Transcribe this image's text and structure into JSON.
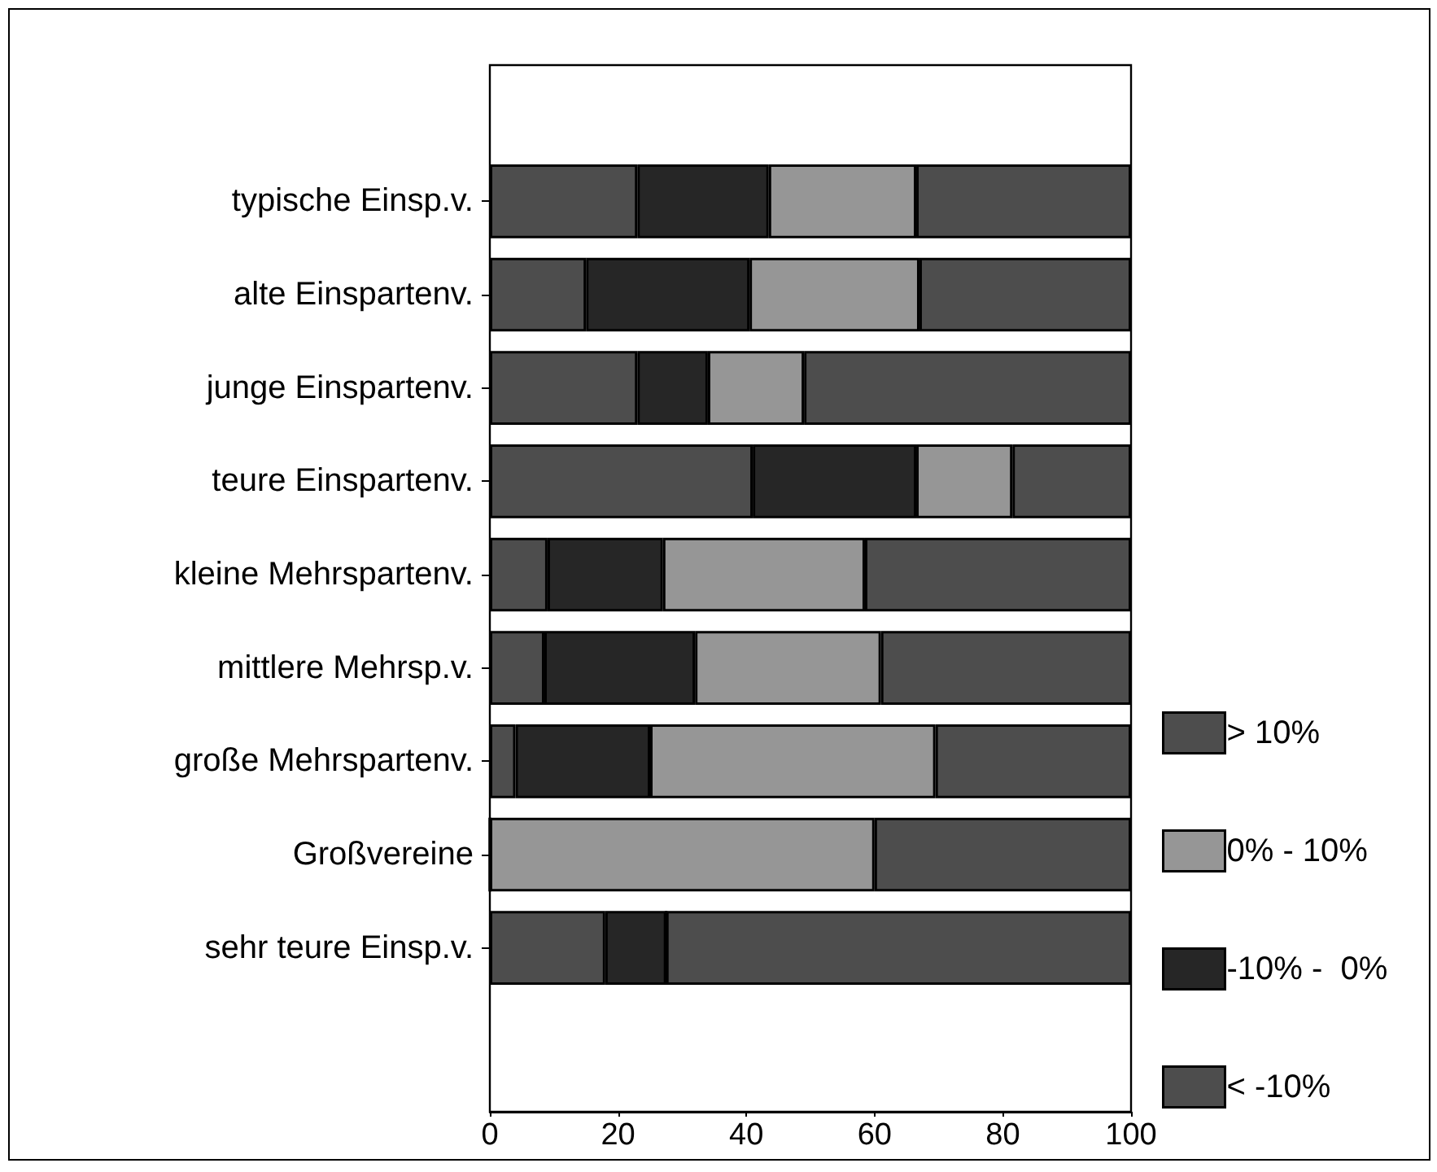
{
  "chart_data": {
    "type": "bar",
    "orientation": "horizontal",
    "stacked": true,
    "categories": [
      "typische Einsp.v.",
      "alte Einspartenv.",
      "junge Einspartenv.",
      "teure Einspartenv.",
      "kleine Mehrspartenv.",
      "mittlere Mehrsp.v.",
      "große Mehrspartenv.",
      "Großvereine",
      "sehr teure Einsp.v."
    ],
    "series": [
      {
        "name": "< -10%",
        "color": "#4d4d4d",
        "values": [
          23,
          15,
          23,
          41,
          9,
          8.5,
          4,
          0,
          18
        ]
      },
      {
        "name": "-10% -  0%",
        "color": "#262626",
        "values": [
          20.5,
          25.5,
          11,
          25.5,
          18,
          23.5,
          21,
          0,
          9.5
        ]
      },
      {
        "name": "0% - 10%",
        "color": "#969696",
        "values": [
          23,
          26.5,
          15,
          15,
          31.5,
          29,
          44.5,
          60,
          0
        ]
      },
      {
        "name": "> 10%",
        "color": "#4d4d4d",
        "values": [
          33.5,
          33,
          51,
          18.5,
          41.5,
          39,
          30.5,
          40,
          72.5
        ]
      }
    ],
    "xlim": [
      0,
      100
    ],
    "xticks": [
      0,
      20,
      40,
      60,
      80,
      100
    ],
    "grid": false,
    "legend": "bottom right"
  }
}
